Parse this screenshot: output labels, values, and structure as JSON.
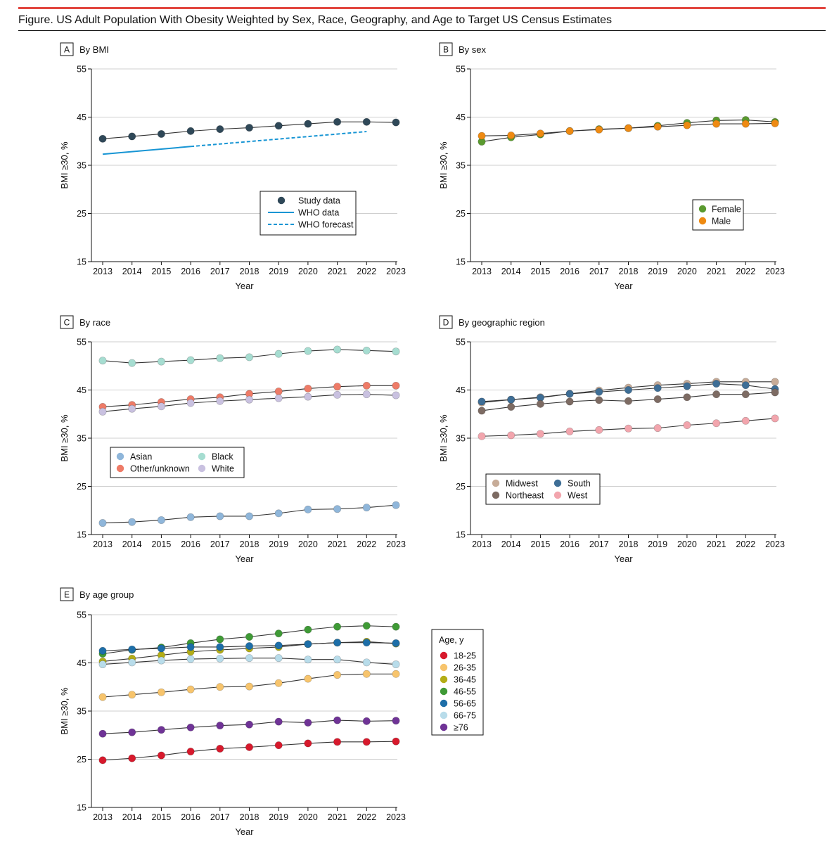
{
  "figure": {
    "title": "Figure. US Adult Population With Obesity Weighted by Sex, Race, Geography, and Age to Target US Census Estimates",
    "accent_color": "#e2463f"
  },
  "chart_data": [
    {
      "type": "line",
      "panel_letter": "A",
      "title": "By BMI",
      "xlabel": "Year",
      "ylabel": "BMI ≥30, %",
      "x": [
        2013,
        2014,
        2015,
        2016,
        2017,
        2018,
        2019,
        2020,
        2021,
        2022,
        2023
      ],
      "ylim": [
        15,
        55
      ],
      "yticks": [
        15,
        25,
        35,
        45,
        55
      ],
      "series": [
        {
          "name": "Study data",
          "style": "dots",
          "color": "#2f4858",
          "values": [
            40.5,
            41.0,
            41.5,
            42.1,
            42.5,
            42.8,
            43.2,
            43.6,
            44.0,
            44.0,
            43.9
          ]
        },
        {
          "name": "WHO data",
          "style": "solid",
          "color": "#1795d4",
          "values": [
            37.3,
            null,
            null,
            38.9,
            null,
            null,
            null,
            null,
            null,
            null,
            null
          ]
        },
        {
          "name": "WHO forecast",
          "style": "dashed",
          "color": "#1795d4",
          "values": [
            null,
            null,
            null,
            38.9,
            null,
            null,
            null,
            null,
            null,
            42.0,
            null
          ]
        }
      ]
    },
    {
      "type": "line",
      "panel_letter": "B",
      "title": "By sex",
      "xlabel": "Year",
      "ylabel": "BMI ≥30, %",
      "x": [
        2013,
        2014,
        2015,
        2016,
        2017,
        2018,
        2019,
        2020,
        2021,
        2022,
        2023
      ],
      "ylim": [
        15,
        55
      ],
      "yticks": [
        15,
        25,
        35,
        45,
        55
      ],
      "series": [
        {
          "name": "Female",
          "color": "#5a9a2f",
          "values": [
            39.9,
            40.8,
            41.4,
            42.1,
            42.5,
            42.7,
            43.2,
            43.8,
            44.3,
            44.4,
            44.0
          ]
        },
        {
          "name": "Male",
          "color": "#ee8a12",
          "values": [
            41.1,
            41.2,
            41.6,
            42.1,
            42.4,
            42.7,
            43.0,
            43.3,
            43.6,
            43.6,
            43.7
          ]
        }
      ]
    },
    {
      "type": "line",
      "panel_letter": "C",
      "title": "By race",
      "xlabel": "Year",
      "ylabel": "BMI ≥30, %",
      "x": [
        2013,
        2014,
        2015,
        2016,
        2017,
        2018,
        2019,
        2020,
        2021,
        2022,
        2023
      ],
      "ylim": [
        15,
        55
      ],
      "yticks": [
        15,
        25,
        35,
        45,
        55
      ],
      "series": [
        {
          "name": "Asian",
          "color": "#8fb6da",
          "values": [
            17.4,
            17.6,
            18.0,
            18.6,
            18.8,
            18.8,
            19.4,
            20.2,
            20.3,
            20.6,
            21.1
          ]
        },
        {
          "name": "Black",
          "color": "#a6ddd1",
          "values": [
            51.1,
            50.6,
            50.9,
            51.2,
            51.6,
            51.8,
            52.5,
            53.1,
            53.4,
            53.2,
            53.0
          ]
        },
        {
          "name": "Other/unknown",
          "color": "#ee7b67",
          "values": [
            41.5,
            41.9,
            42.5,
            43.1,
            43.5,
            44.2,
            44.7,
            45.3,
            45.7,
            45.9,
            45.9
          ]
        },
        {
          "name": "White",
          "color": "#c9c1e0",
          "values": [
            40.5,
            41.1,
            41.6,
            42.3,
            42.7,
            43.0,
            43.3,
            43.6,
            44.0,
            44.1,
            43.9
          ]
        }
      ],
      "legend_order": [
        "Asian",
        "Black",
        "Other/unknown",
        "White"
      ]
    },
    {
      "type": "line",
      "panel_letter": "D",
      "title": "By geographic region",
      "xlabel": "Year",
      "ylabel": "BMI ≥30, %",
      "x": [
        2013,
        2014,
        2015,
        2016,
        2017,
        2018,
        2019,
        2020,
        2021,
        2022,
        2023
      ],
      "ylim": [
        15,
        55
      ],
      "yticks": [
        15,
        25,
        35,
        45,
        55
      ],
      "series": [
        {
          "name": "Midwest",
          "color": "#c7ac98",
          "values": [
            42.4,
            43.0,
            43.5,
            44.2,
            44.9,
            45.5,
            46.0,
            46.3,
            46.7,
            46.7,
            46.7
          ]
        },
        {
          "name": "South",
          "color": "#3e6e96",
          "values": [
            42.6,
            43.0,
            43.4,
            44.2,
            44.6,
            45.0,
            45.4,
            45.8,
            46.3,
            46.0,
            45.2
          ]
        },
        {
          "name": "Northeast",
          "color": "#7d6b63",
          "values": [
            40.7,
            41.5,
            42.1,
            42.6,
            42.9,
            42.7,
            43.1,
            43.5,
            44.1,
            44.1,
            44.5
          ]
        },
        {
          "name": "West",
          "color": "#f2a5ad",
          "values": [
            35.4,
            35.6,
            35.9,
            36.4,
            36.7,
            37.0,
            37.1,
            37.7,
            38.1,
            38.6,
            39.1
          ]
        }
      ],
      "legend_order": [
        "Midwest",
        "South",
        "Northeast",
        "West"
      ]
    },
    {
      "type": "line",
      "panel_letter": "E",
      "title": "By age group",
      "xlabel": "Year",
      "ylabel": "BMI ≥30, %",
      "legend_title": "Age, y",
      "x": [
        2013,
        2014,
        2015,
        2016,
        2017,
        2018,
        2019,
        2020,
        2021,
        2022,
        2023
      ],
      "ylim": [
        15,
        55
      ],
      "yticks": [
        15,
        25,
        35,
        45,
        55
      ],
      "series": [
        {
          "name": "18-25",
          "color": "#d7192c",
          "values": [
            24.8,
            25.2,
            25.8,
            26.6,
            27.2,
            27.5,
            27.9,
            28.3,
            28.6,
            28.6,
            28.7
          ]
        },
        {
          "name": "26-35",
          "color": "#f7c46c",
          "values": [
            37.9,
            38.4,
            38.9,
            39.5,
            40.0,
            40.1,
            40.8,
            41.7,
            42.5,
            42.7,
            42.7
          ]
        },
        {
          "name": "36-45",
          "color": "#b3ad16",
          "values": [
            45.3,
            45.9,
            46.6,
            47.3,
            47.7,
            48.0,
            48.3,
            48.9,
            49.2,
            49.4,
            49.0
          ]
        },
        {
          "name": "46-55",
          "color": "#3f9a36",
          "values": [
            46.9,
            47.7,
            48.2,
            49.1,
            49.9,
            50.4,
            51.1,
            51.9,
            52.5,
            52.7,
            52.5
          ]
        },
        {
          "name": "56-65",
          "color": "#1d6ea8",
          "values": [
            47.5,
            47.8,
            48.0,
            48.3,
            48.3,
            48.5,
            48.6,
            48.9,
            49.2,
            49.2,
            49.1
          ]
        },
        {
          "name": "66-75",
          "color": "#b8dcea",
          "values": [
            44.7,
            45.1,
            45.5,
            45.8,
            45.9,
            46.0,
            46.0,
            45.7,
            45.7,
            45.1,
            44.7
          ]
        },
        {
          "name": "≥76",
          "color": "#6f3396",
          "values": [
            30.3,
            30.6,
            31.1,
            31.6,
            32.0,
            32.2,
            32.8,
            32.6,
            33.1,
            32.9,
            33.0
          ]
        }
      ]
    }
  ]
}
